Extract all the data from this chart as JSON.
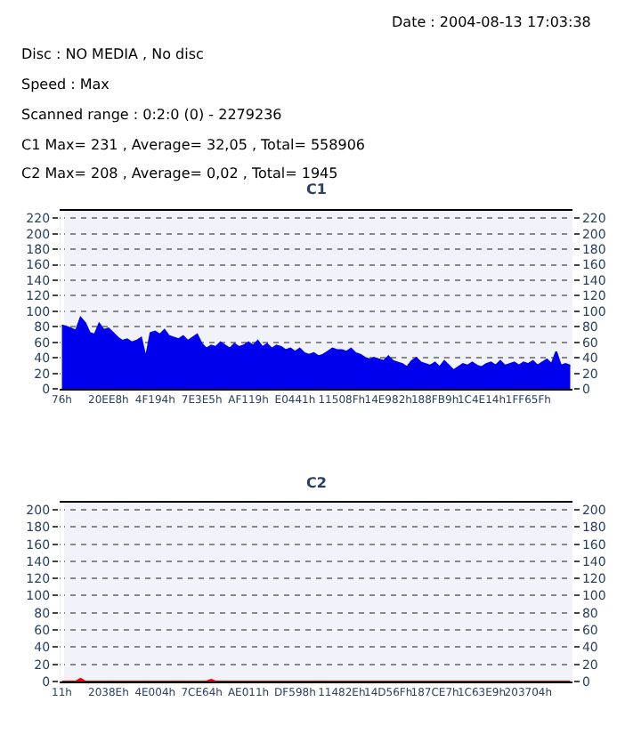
{
  "chart_data": [
    {
      "type": "other",
      "annotations": [
        "Date : 2004-08-13 17:03:38",
        "Disc : NO MEDIA , No disc",
        "Speed : Max",
        "Scanned range : 0:2:0 (0) - 2279236",
        "C1 Max= 231 , Average= 32,05 , Total= 558906",
        "C2 Max= 208 , Average= 0,02 , Total= 1945"
      ]
    },
    {
      "type": "area",
      "title": "C1",
      "color": "#0000ee",
      "categories": [
        "76h",
        null,
        null,
        null,
        null,
        null,
        null,
        null,
        null,
        null,
        "20EE8h",
        null,
        null,
        null,
        null,
        null,
        null,
        null,
        null,
        null,
        "4F194h",
        null,
        null,
        null,
        null,
        null,
        null,
        null,
        null,
        null,
        "7E3E5h",
        null,
        null,
        null,
        null,
        null,
        null,
        null,
        null,
        null,
        "AF119h",
        null,
        null,
        null,
        null,
        null,
        null,
        null,
        null,
        null,
        "E0441h",
        null,
        null,
        null,
        null,
        null,
        null,
        null,
        null,
        null,
        "11508Fh",
        null,
        null,
        null,
        null,
        null,
        null,
        null,
        null,
        null,
        "14E982h",
        null,
        null,
        null,
        null,
        null,
        null,
        null,
        null,
        null,
        "188FB9h",
        null,
        null,
        null,
        null,
        null,
        null,
        null,
        null,
        null,
        "1C4E14h",
        null,
        null,
        null,
        null,
        null,
        null,
        null,
        null,
        null,
        "1FF65Fh",
        null,
        null,
        null,
        null,
        null,
        null,
        null,
        null,
        null
      ],
      "values": [
        82,
        80,
        78,
        75,
        92,
        85,
        72,
        70,
        84,
        76,
        78,
        72,
        66,
        62,
        64,
        60,
        62,
        66,
        40,
        72,
        74,
        70,
        76,
        68,
        66,
        64,
        68,
        62,
        66,
        70,
        58,
        52,
        56,
        54,
        60,
        56,
        52,
        58,
        54,
        56,
        60,
        56,
        62,
        54,
        58,
        52,
        56,
        54,
        50,
        52,
        48,
        52,
        46,
        44,
        46,
        42,
        44,
        48,
        52,
        50,
        50,
        48,
        52,
        46,
        44,
        40,
        38,
        40,
        38,
        36,
        42,
        36,
        34,
        32,
        28,
        36,
        40,
        34,
        32,
        30,
        34,
        28,
        36,
        30,
        24,
        28,
        32,
        30,
        34,
        30,
        28,
        32,
        34,
        30,
        36,
        30,
        32,
        34,
        30,
        34,
        32,
        36,
        30,
        34,
        38,
        32,
        48,
        30,
        32,
        30
      ],
      "ylim": [
        0,
        230
      ],
      "yticks": [
        0,
        20,
        40,
        60,
        80,
        100,
        120,
        140,
        160,
        180,
        200,
        220
      ],
      "y2lim": [
        0,
        230
      ],
      "y2ticks": [
        0,
        20,
        40,
        60,
        80,
        100,
        120,
        140,
        160,
        180,
        200,
        220
      ],
      "grid": "y"
    },
    {
      "type": "area",
      "title": "C2",
      "color": "#ee0000",
      "categories": [
        "11h",
        null,
        null,
        null,
        null,
        null,
        null,
        null,
        null,
        null,
        "2038Eh",
        null,
        null,
        null,
        null,
        null,
        null,
        null,
        null,
        null,
        "4E004h",
        null,
        null,
        null,
        null,
        null,
        null,
        null,
        null,
        null,
        "7CE64h",
        null,
        null,
        null,
        null,
        null,
        null,
        null,
        null,
        null,
        "AE011h",
        null,
        null,
        null,
        null,
        null,
        null,
        null,
        null,
        null,
        "DF598h",
        null,
        null,
        null,
        null,
        null,
        null,
        null,
        null,
        null,
        "11482Eh",
        null,
        null,
        null,
        null,
        null,
        null,
        null,
        null,
        null,
        "14D56Fh",
        null,
        null,
        null,
        null,
        null,
        null,
        null,
        null,
        null,
        "187CE7h",
        null,
        null,
        null,
        null,
        null,
        null,
        null,
        null,
        null,
        "1C63E9h",
        null,
        null,
        null,
        null,
        null,
        null,
        null,
        null,
        null,
        "203704h",
        null,
        null,
        null,
        null,
        null,
        null,
        null,
        null,
        null
      ],
      "values": [
        0,
        0,
        0,
        0,
        3,
        0,
        0,
        0,
        0,
        0,
        0,
        0,
        0,
        0,
        0,
        0,
        0,
        0,
        0,
        0,
        0,
        0,
        0,
        0,
        0,
        0,
        0,
        0,
        0,
        0,
        0,
        0,
        2,
        0,
        0,
        0,
        0,
        0,
        0,
        0,
        0,
        0,
        0,
        0,
        0,
        0,
        0,
        0,
        0,
        0,
        0,
        0,
        0,
        0,
        0,
        0,
        0,
        0,
        0,
        0,
        0,
        0,
        0,
        0,
        0,
        0,
        0,
        0,
        0,
        0,
        0,
        0,
        0,
        0,
        0,
        0,
        0,
        0,
        0,
        0,
        0,
        0,
        0,
        0,
        0,
        0,
        0,
        0,
        0,
        0,
        0,
        0,
        0,
        0,
        0,
        0,
        0,
        0,
        0,
        0,
        0,
        0,
        0,
        0,
        0,
        0,
        0,
        0,
        0,
        0
      ],
      "ylim": [
        0,
        208
      ],
      "yticks": [
        0,
        20,
        40,
        60,
        80,
        100,
        120,
        140,
        160,
        180,
        200
      ],
      "y2lim": [
        0,
        208
      ],
      "y2ticks": [
        0,
        20,
        40,
        60,
        80,
        100,
        120,
        140,
        160,
        180,
        200
      ],
      "grid": "y"
    }
  ]
}
